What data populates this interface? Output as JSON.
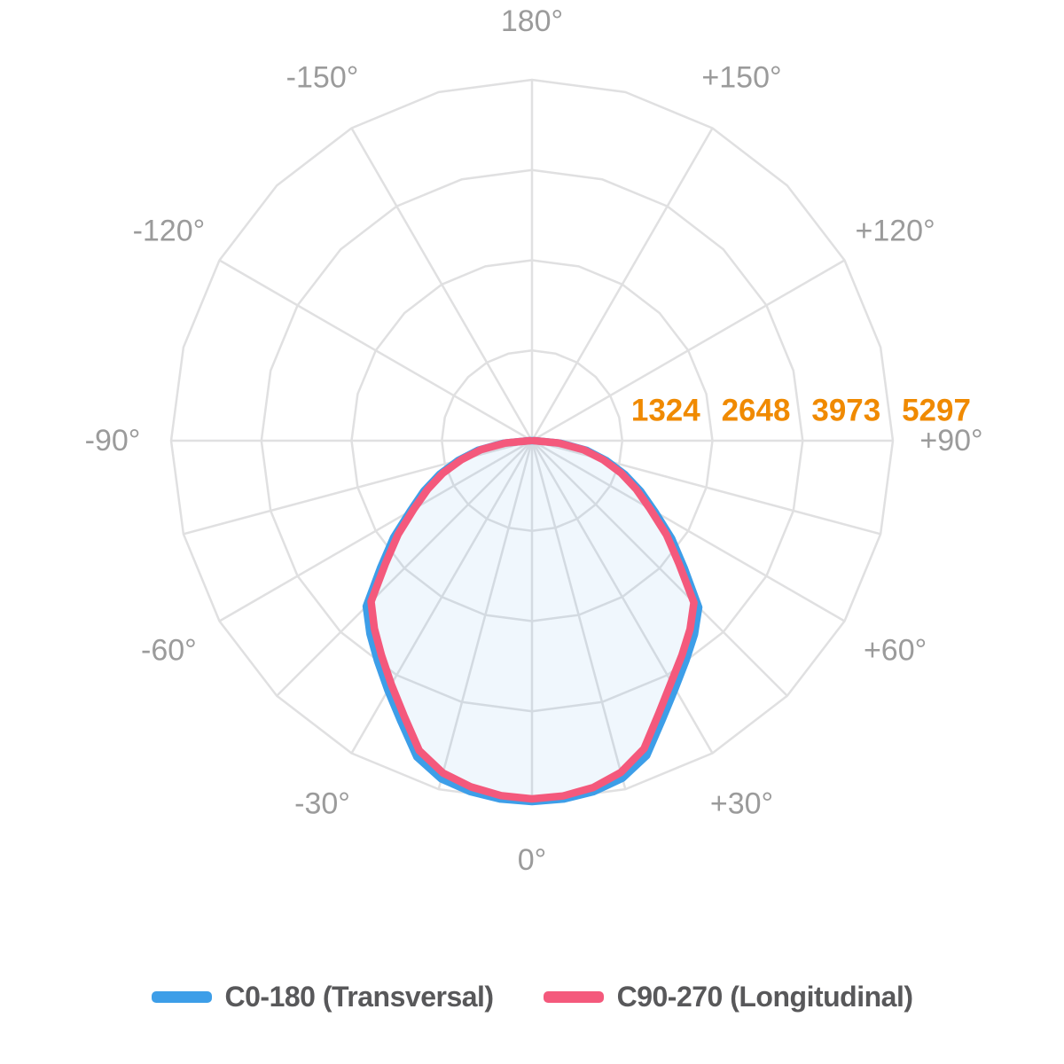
{
  "page": {
    "background_color": "#FFFFFF"
  },
  "chart_data": {
    "type": "polar",
    "description_orientation": "photometric polar diagram, 0 degrees at bottom, 180 degrees at top",
    "angles_deg": [
      -90,
      -85,
      -80,
      -75,
      -70,
      -65,
      -60,
      -55,
      -50,
      -45,
      -40,
      -35,
      -30,
      -25,
      -20,
      -15,
      -10,
      -5,
      0,
      5,
      10,
      15,
      20,
      25,
      30,
      35,
      40,
      45,
      50,
      55,
      60,
      65,
      70,
      75,
      80,
      85,
      90
    ],
    "series": [
      {
        "name": "C0-180 (Transversal)",
        "color": "#3D9EE8",
        "fill_color": "rgba(61,158,232,0.08)",
        "values": [
          40,
          420,
          800,
          1120,
          1440,
          1750,
          2060,
          2480,
          2900,
          3440,
          3700,
          3950,
          4230,
          4550,
          4940,
          5140,
          5230,
          5280,
          5297,
          5280,
          5230,
          5130,
          4920,
          4520,
          4200,
          3940,
          3710,
          3460,
          2920,
          2500,
          2080,
          1760,
          1450,
          1130,
          810,
          420,
          40
        ]
      },
      {
        "name": "C90-270 (Longitudinal)",
        "color": "#F4597C",
        "fill_color": "none",
        "values": [
          30,
          390,
          760,
          1070,
          1390,
          1690,
          2000,
          2400,
          2810,
          3340,
          3600,
          3850,
          4130,
          4450,
          4840,
          5050,
          5160,
          5230,
          5258,
          5235,
          5170,
          5040,
          4810,
          4410,
          4090,
          3840,
          3610,
          3360,
          2820,
          2410,
          2000,
          1690,
          1390,
          1080,
          770,
          390,
          30
        ]
      }
    ],
    "radial_axis": {
      "max": 5297,
      "ticks": [
        "1324",
        "2648",
        "3973",
        "5297"
      ],
      "tick_color": "#F08A00",
      "rings": 4
    },
    "angle_labels": [
      {
        "angle_deg": 0,
        "text": "0°"
      },
      {
        "angle_deg": 30,
        "text": "+30°"
      },
      {
        "angle_deg": -30,
        "text": "-30°"
      },
      {
        "angle_deg": 60,
        "text": "+60°"
      },
      {
        "angle_deg": -60,
        "text": "-60°"
      },
      {
        "angle_deg": 90,
        "text": "+90°"
      },
      {
        "angle_deg": -90,
        "text": "-90°"
      },
      {
        "angle_deg": 120,
        "text": "+120°"
      },
      {
        "angle_deg": -120,
        "text": "-120°"
      },
      {
        "angle_deg": 150,
        "text": "+150°"
      },
      {
        "angle_deg": -150,
        "text": "-150°"
      },
      {
        "angle_deg": 180,
        "text": "180°"
      }
    ],
    "angle_label_color": "#9B9B9B",
    "grid_color": "#E0E0E1",
    "major_spoke_step_deg": 30,
    "minor_spokes_deg_lower_half": [
      -75,
      -45,
      -15,
      15,
      45,
      75
    ],
    "legend_position": "bottom"
  }
}
